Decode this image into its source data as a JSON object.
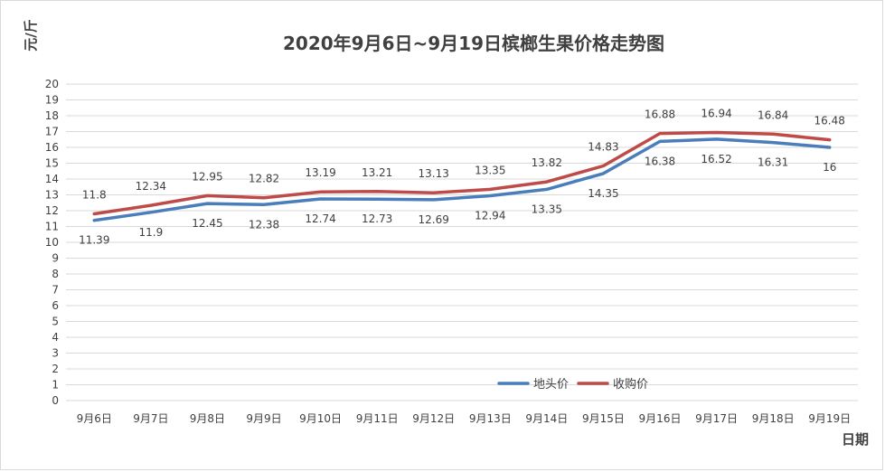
{
  "chart_data": {
    "type": "line",
    "title": "2020年9月6日~9月19日槟榔生果价格走势图",
    "xlabel": "日期",
    "ylabel": "元/斤",
    "ylim": [
      0,
      20
    ],
    "y_ticks": [
      "0",
      "1",
      "2",
      "3",
      "4",
      "5",
      "6",
      "7",
      "8",
      "9",
      "10",
      "11",
      "12",
      "13",
      "14",
      "15",
      "16",
      "17",
      "18",
      "19",
      "20"
    ],
    "grid": true,
    "legend_position": "bottom-right",
    "categories": [
      "9月6日",
      "9月7日",
      "9月8日",
      "9月9日",
      "9月10日",
      "9月11日",
      "9月12日",
      "9月13日",
      "9月14日",
      "9月15日",
      "9月16日",
      "9月17日",
      "9月18日",
      "9月19日"
    ],
    "series": [
      {
        "name": "地头价",
        "color": "#4a7ebb",
        "values": [
          11.39,
          11.9,
          12.45,
          12.38,
          12.74,
          12.73,
          12.69,
          12.94,
          13.35,
          14.35,
          16.38,
          16.52,
          16.31,
          16
        ],
        "labels": [
          "11.39",
          "11.9",
          "12.45",
          "12.38",
          "12.74",
          "12.73",
          "12.69",
          "12.94",
          "13.35",
          "14.35",
          "16.38",
          "16.52",
          "16.31",
          "16"
        ]
      },
      {
        "name": "收购价",
        "color": "#be4b48",
        "values": [
          11.8,
          12.34,
          12.95,
          12.82,
          13.19,
          13.21,
          13.13,
          13.35,
          13.82,
          14.83,
          16.88,
          16.94,
          16.84,
          16.48
        ],
        "labels": [
          "11.8",
          "12.34",
          "12.95",
          "12.82",
          "13.19",
          "13.21",
          "13.13",
          "13.35",
          "13.82",
          "14.83",
          "16.88",
          "16.94",
          "16.84",
          "16.48"
        ]
      }
    ]
  }
}
